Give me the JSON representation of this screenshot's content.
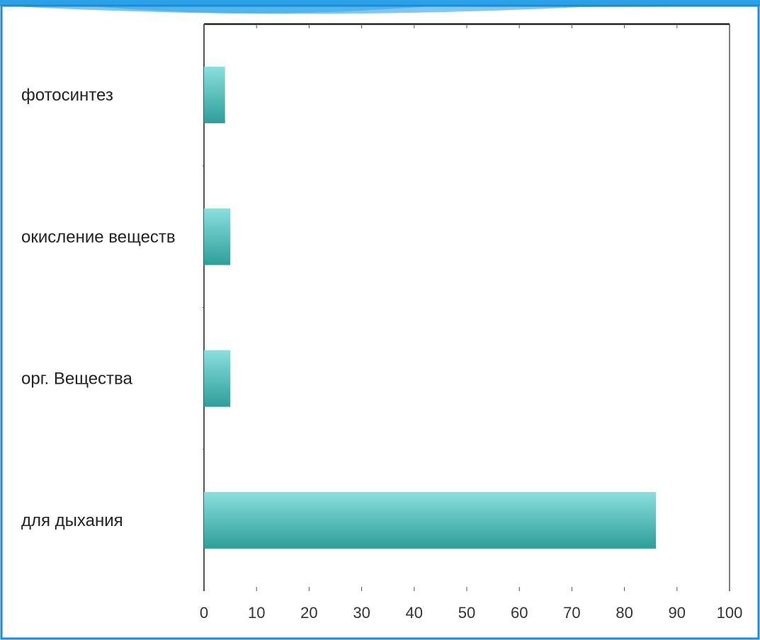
{
  "colors": {
    "slide_border": "#1a8bd6",
    "header_swoosh": "#2aa0e6",
    "header_swoosh_light": "#8fd3f7",
    "bar_top": "#8adfdc",
    "bar_bottom": "#2e9e99",
    "axis": "#555555",
    "frame_top": "#222222"
  },
  "chart_data": {
    "type": "bar",
    "orientation": "horizontal",
    "categories": [
      "фотосинтез",
      "окисление веществ",
      "орг. Вещества",
      "для дыхания"
    ],
    "values": [
      4,
      5,
      5,
      86
    ],
    "xlim": [
      0,
      100
    ],
    "xticks": [
      "0",
      "10",
      "20",
      "30",
      "40",
      "50",
      "60",
      "70",
      "80",
      "90",
      "100"
    ],
    "title": "",
    "xlabel": "",
    "ylabel": "",
    "grid": false,
    "legend": "none"
  }
}
